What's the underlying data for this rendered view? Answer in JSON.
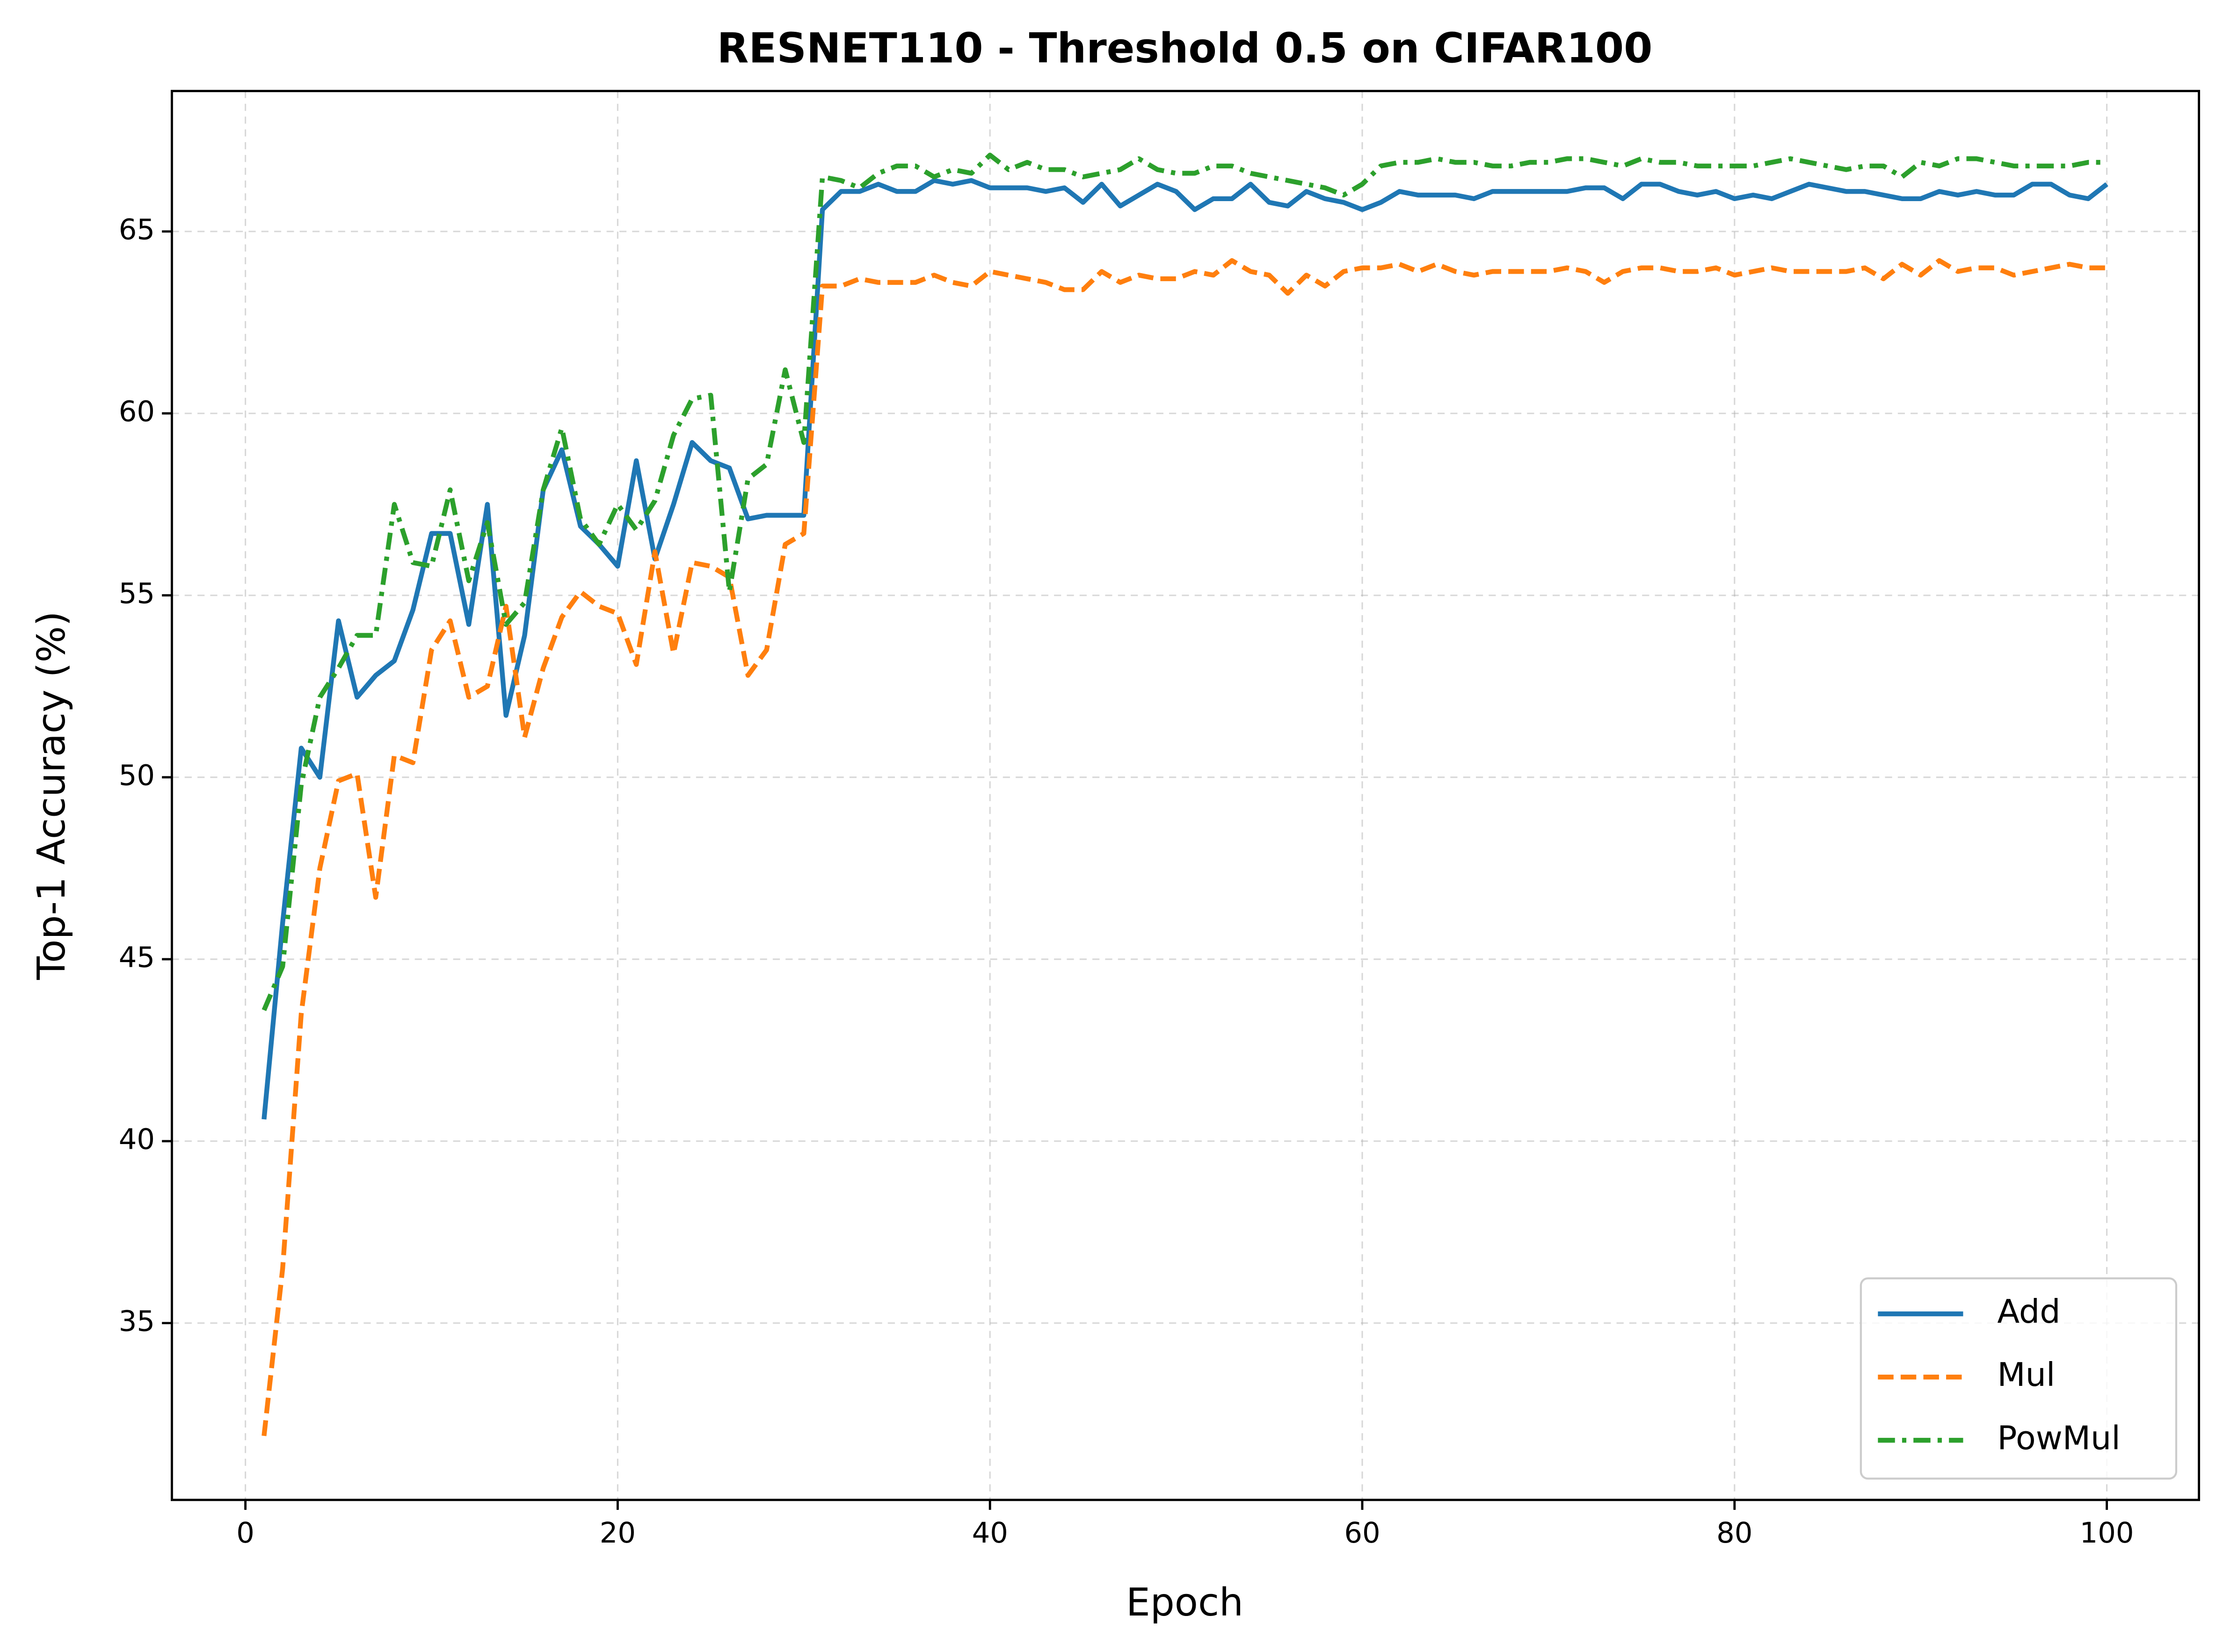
{
  "chart_data": {
    "type": "line",
    "title": "RESNET110 - Threshold 0.5 on CIFAR100",
    "xlabel": "Epoch",
    "ylabel": "Top-1 Accuracy (%)",
    "x": [
      1,
      2,
      3,
      4,
      5,
      6,
      7,
      8,
      9,
      10,
      11,
      12,
      13,
      14,
      15,
      16,
      17,
      18,
      19,
      20,
      21,
      22,
      23,
      24,
      25,
      26,
      27,
      28,
      29,
      30,
      31,
      32,
      33,
      34,
      35,
      36,
      37,
      38,
      39,
      40,
      41,
      42,
      43,
      44,
      45,
      46,
      47,
      48,
      49,
      50,
      51,
      52,
      53,
      54,
      55,
      56,
      57,
      58,
      59,
      60,
      61,
      62,
      63,
      64,
      65,
      66,
      67,
      68,
      69,
      70,
      71,
      72,
      73,
      74,
      75,
      76,
      77,
      78,
      79,
      80,
      81,
      82,
      83,
      84,
      85,
      86,
      87,
      88,
      89,
      90,
      91,
      92,
      93,
      94,
      95,
      96,
      97,
      98,
      99,
      100
    ],
    "series": [
      {
        "name": "Add",
        "color": "#1f77b4",
        "dash": "solid",
        "values": [
          40.6,
          46.0,
          50.8,
          50.0,
          54.3,
          52.2,
          52.8,
          53.2,
          54.6,
          56.7,
          56.7,
          54.2,
          57.5,
          51.7,
          53.9,
          57.9,
          59.0,
          56.9,
          56.4,
          55.8,
          58.7,
          56.0,
          57.5,
          59.2,
          58.7,
          58.5,
          57.1,
          57.2,
          57.2,
          57.2,
          65.6,
          66.1,
          66.1,
          66.3,
          66.1,
          66.1,
          66.4,
          66.3,
          66.4,
          66.2,
          66.2,
          66.2,
          66.1,
          66.2,
          65.8,
          66.3,
          65.7,
          66.0,
          66.3,
          66.1,
          65.6,
          65.9,
          65.9,
          66.3,
          65.8,
          65.7,
          66.1,
          65.9,
          65.8,
          65.6,
          65.8,
          66.1,
          66.0,
          66.0,
          66.0,
          65.9,
          66.1,
          66.1,
          66.1,
          66.1,
          66.1,
          66.2,
          66.2,
          65.9,
          66.3,
          66.3,
          66.1,
          66.0,
          66.1,
          65.9,
          66.0,
          65.9,
          66.1,
          66.3,
          66.2,
          66.1,
          66.1,
          66.0,
          65.9,
          65.9,
          66.1,
          66.0,
          66.1,
          66.0,
          66.0,
          66.3,
          66.3,
          66.0,
          65.9,
          66.3
        ]
      },
      {
        "name": "Mul",
        "color": "#ff7f0e",
        "dash": "dashed",
        "values": [
          31.9,
          36.5,
          43.5,
          47.5,
          49.9,
          50.1,
          46.7,
          50.6,
          50.4,
          53.5,
          54.3,
          52.2,
          52.5,
          54.7,
          51.1,
          53.0,
          54.4,
          55.1,
          54.7,
          54.5,
          53.1,
          56.2,
          53.4,
          55.9,
          55.8,
          55.5,
          52.8,
          53.5,
          56.4,
          56.7,
          63.5,
          63.5,
          63.7,
          63.6,
          63.6,
          63.6,
          63.8,
          63.6,
          63.5,
          63.9,
          63.8,
          63.7,
          63.6,
          63.4,
          63.4,
          63.9,
          63.6,
          63.8,
          63.7,
          63.7,
          63.9,
          63.8,
          64.2,
          63.9,
          63.8,
          63.3,
          63.8,
          63.5,
          63.9,
          64.0,
          64.0,
          64.1,
          63.9,
          64.1,
          63.9,
          63.8,
          63.9,
          63.9,
          63.9,
          63.9,
          64.0,
          63.9,
          63.6,
          63.9,
          64.0,
          64.0,
          63.9,
          63.9,
          64.0,
          63.8,
          63.9,
          64.0,
          63.9,
          63.9,
          63.9,
          63.9,
          64.0,
          63.7,
          64.1,
          63.8,
          64.2,
          63.9,
          64.0,
          64.0,
          63.8,
          63.9,
          64.0,
          64.1,
          64.0,
          64.0
        ]
      },
      {
        "name": "PowMul",
        "color": "#2ca02c",
        "dash": "dashdot",
        "values": [
          43.6,
          44.8,
          49.8,
          52.2,
          53.0,
          53.9,
          53.9,
          57.5,
          55.9,
          55.8,
          57.9,
          55.4,
          57.0,
          54.2,
          54.8,
          57.9,
          59.6,
          57.1,
          56.4,
          57.5,
          56.8,
          57.6,
          59.4,
          60.4,
          60.5,
          55.1,
          58.2,
          58.6,
          61.2,
          59.2,
          66.5,
          66.4,
          66.2,
          66.6,
          66.8,
          66.8,
          66.5,
          66.7,
          66.6,
          67.1,
          66.7,
          66.9,
          66.7,
          66.7,
          66.5,
          66.6,
          66.7,
          67.0,
          66.7,
          66.6,
          66.6,
          66.8,
          66.8,
          66.6,
          66.5,
          66.4,
          66.3,
          66.2,
          66.0,
          66.3,
          66.8,
          66.9,
          66.9,
          67.0,
          66.9,
          66.9,
          66.8,
          66.8,
          66.9,
          66.9,
          67.0,
          67.0,
          66.9,
          66.8,
          67.0,
          66.9,
          66.9,
          66.8,
          66.8,
          66.8,
          66.8,
          66.9,
          67.0,
          66.9,
          66.8,
          66.7,
          66.8,
          66.8,
          66.5,
          66.9,
          66.8,
          67.0,
          67.0,
          66.9,
          66.8,
          66.8,
          66.8,
          66.8,
          66.9,
          66.9
        ]
      }
    ],
    "xlim": [
      -3.95,
      104.95
    ],
    "ylim": [
      30.14,
      68.86
    ],
    "xticks": [
      0,
      20,
      40,
      60,
      80,
      100
    ],
    "yticks": [
      35,
      40,
      45,
      50,
      55,
      60,
      65
    ],
    "grid": true,
    "legend": "lower right"
  }
}
